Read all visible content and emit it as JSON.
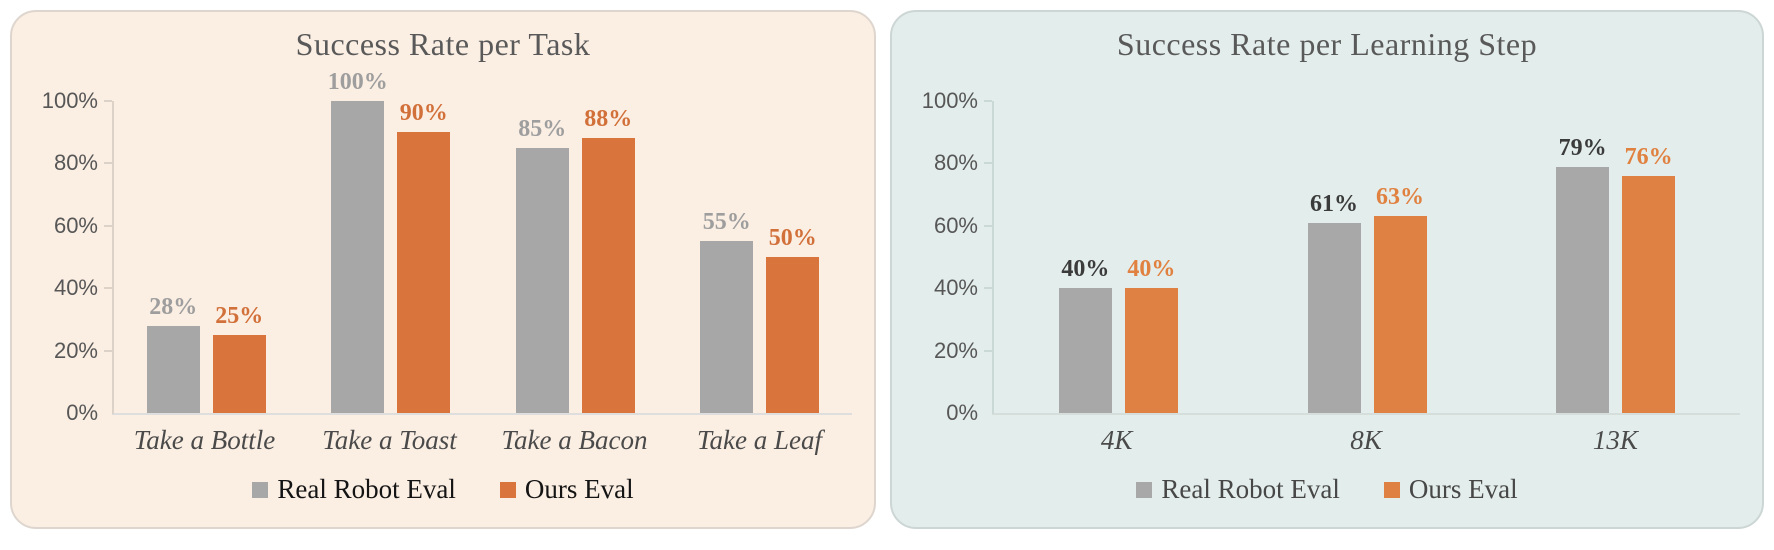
{
  "page": {
    "background": "#ffffff"
  },
  "chart_data": [
    {
      "type": "bar",
      "title": "Success Rate per Task",
      "categories": [
        "Take a Bottle",
        "Take a Toast",
        "Take a Bacon",
        "Take a Leaf"
      ],
      "series": [
        {
          "name": "Real Robot Eval",
          "values": [
            28,
            100,
            85,
            55
          ],
          "labels": [
            "28%",
            "100%",
            "85%",
            "55%"
          ],
          "color": "#a7a7a7",
          "label_color": "#9e9e9e"
        },
        {
          "name": "Ours Eval",
          "values": [
            25,
            90,
            88,
            50
          ],
          "labels": [
            "25%",
            "90%",
            "88%",
            "50%"
          ],
          "color": "#d8743c",
          "label_color": "#d2703a"
        }
      ],
      "ylabel": "",
      "xlabel": "",
      "ylim": [
        0,
        100
      ],
      "yticks": [
        "0%",
        "20%",
        "40%",
        "60%",
        "80%",
        "100%"
      ],
      "grid": false,
      "legend_position": "bottom",
      "legend_text_color": "#141414",
      "background": "#fbeee3",
      "border_color": "#ded6ce",
      "axis_color": "#ddd2c8",
      "baseline_color": "#dedede"
    },
    {
      "type": "bar",
      "title": "Success Rate per Learning Step",
      "categories": [
        "4K",
        "8K",
        "13K"
      ],
      "series": [
        {
          "name": "Real Robot Eval",
          "values": [
            40,
            61,
            79
          ],
          "labels": [
            "40%",
            "61%",
            "79%"
          ],
          "color": "#a8a8a8",
          "label_color": "#3b3b3b"
        },
        {
          "name": "Ours Eval",
          "values": [
            40,
            63,
            76
          ],
          "labels": [
            "40%",
            "63%",
            "76%"
          ],
          "color": "#e08144",
          "label_color": "#e08140"
        }
      ],
      "ylabel": "",
      "xlabel": "",
      "ylim": [
        0,
        100
      ],
      "yticks": [
        "0%",
        "20%",
        "40%",
        "60%",
        "80%",
        "100%"
      ],
      "grid": false,
      "legend_position": "bottom",
      "legend_text_color": "#474747",
      "background": "#e3edeb",
      "border_color": "#ccd6d4",
      "axis_color": "#cbd9d6",
      "baseline_color": "#d6dedc"
    }
  ]
}
